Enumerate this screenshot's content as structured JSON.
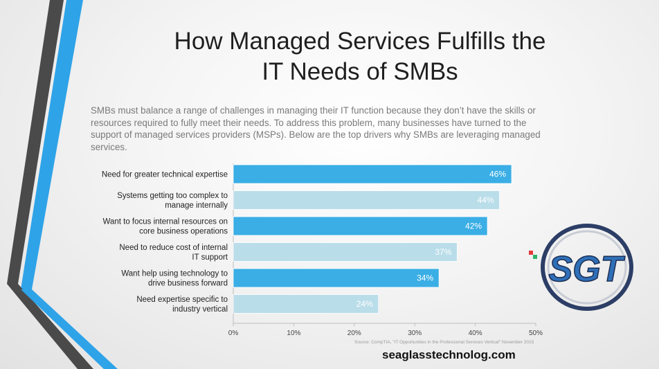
{
  "slide": {
    "title_line1": "How Managed Services Fulfills the",
    "title_line2": "IT Needs of SMBs",
    "intro": "SMBs must balance a range of challenges in managing their IT function because they don’t have the skills or resources required to fully meet their needs. To address this problem, many businesses have turned to the support of managed services providers (MSPs). Below are the top drivers why SMBs are leveraging managed services.",
    "source": "Source: CompTIA, \"IT Opportunities in the Professional Services Vertical\" November 2015",
    "website": "seaglasstechnolog.com",
    "logo_text": "SGT"
  },
  "colors": {
    "bar_dark": "#3aaee5",
    "bar_light": "#b9dde9",
    "stripe_gray": "#4a4a4a",
    "stripe_blue": "#2ea3e8"
  },
  "chart_data": {
    "type": "bar",
    "orientation": "horizontal",
    "categories": [
      [
        "Need for greater technical expertise"
      ],
      [
        "Systems getting too complex to",
        "manage internally"
      ],
      [
        "Want to focus internal resources on",
        "core business operations"
      ],
      [
        "Need to reduce cost of internal",
        "IT support"
      ],
      [
        "Want help using technology to",
        "drive business forward"
      ],
      [
        "Need expertise specific to",
        "industry vertical"
      ]
    ],
    "values": [
      46,
      44,
      42,
      37,
      34,
      24
    ],
    "value_labels": [
      "46%",
      "44%",
      "42%",
      "37%",
      "34%",
      "24%"
    ],
    "xlim": [
      0,
      50
    ],
    "ticks": [
      0,
      10,
      20,
      30,
      40,
      50
    ],
    "tick_labels": [
      "0%",
      "10%",
      "20%",
      "30%",
      "40%",
      "50%"
    ],
    "grid": false
  }
}
